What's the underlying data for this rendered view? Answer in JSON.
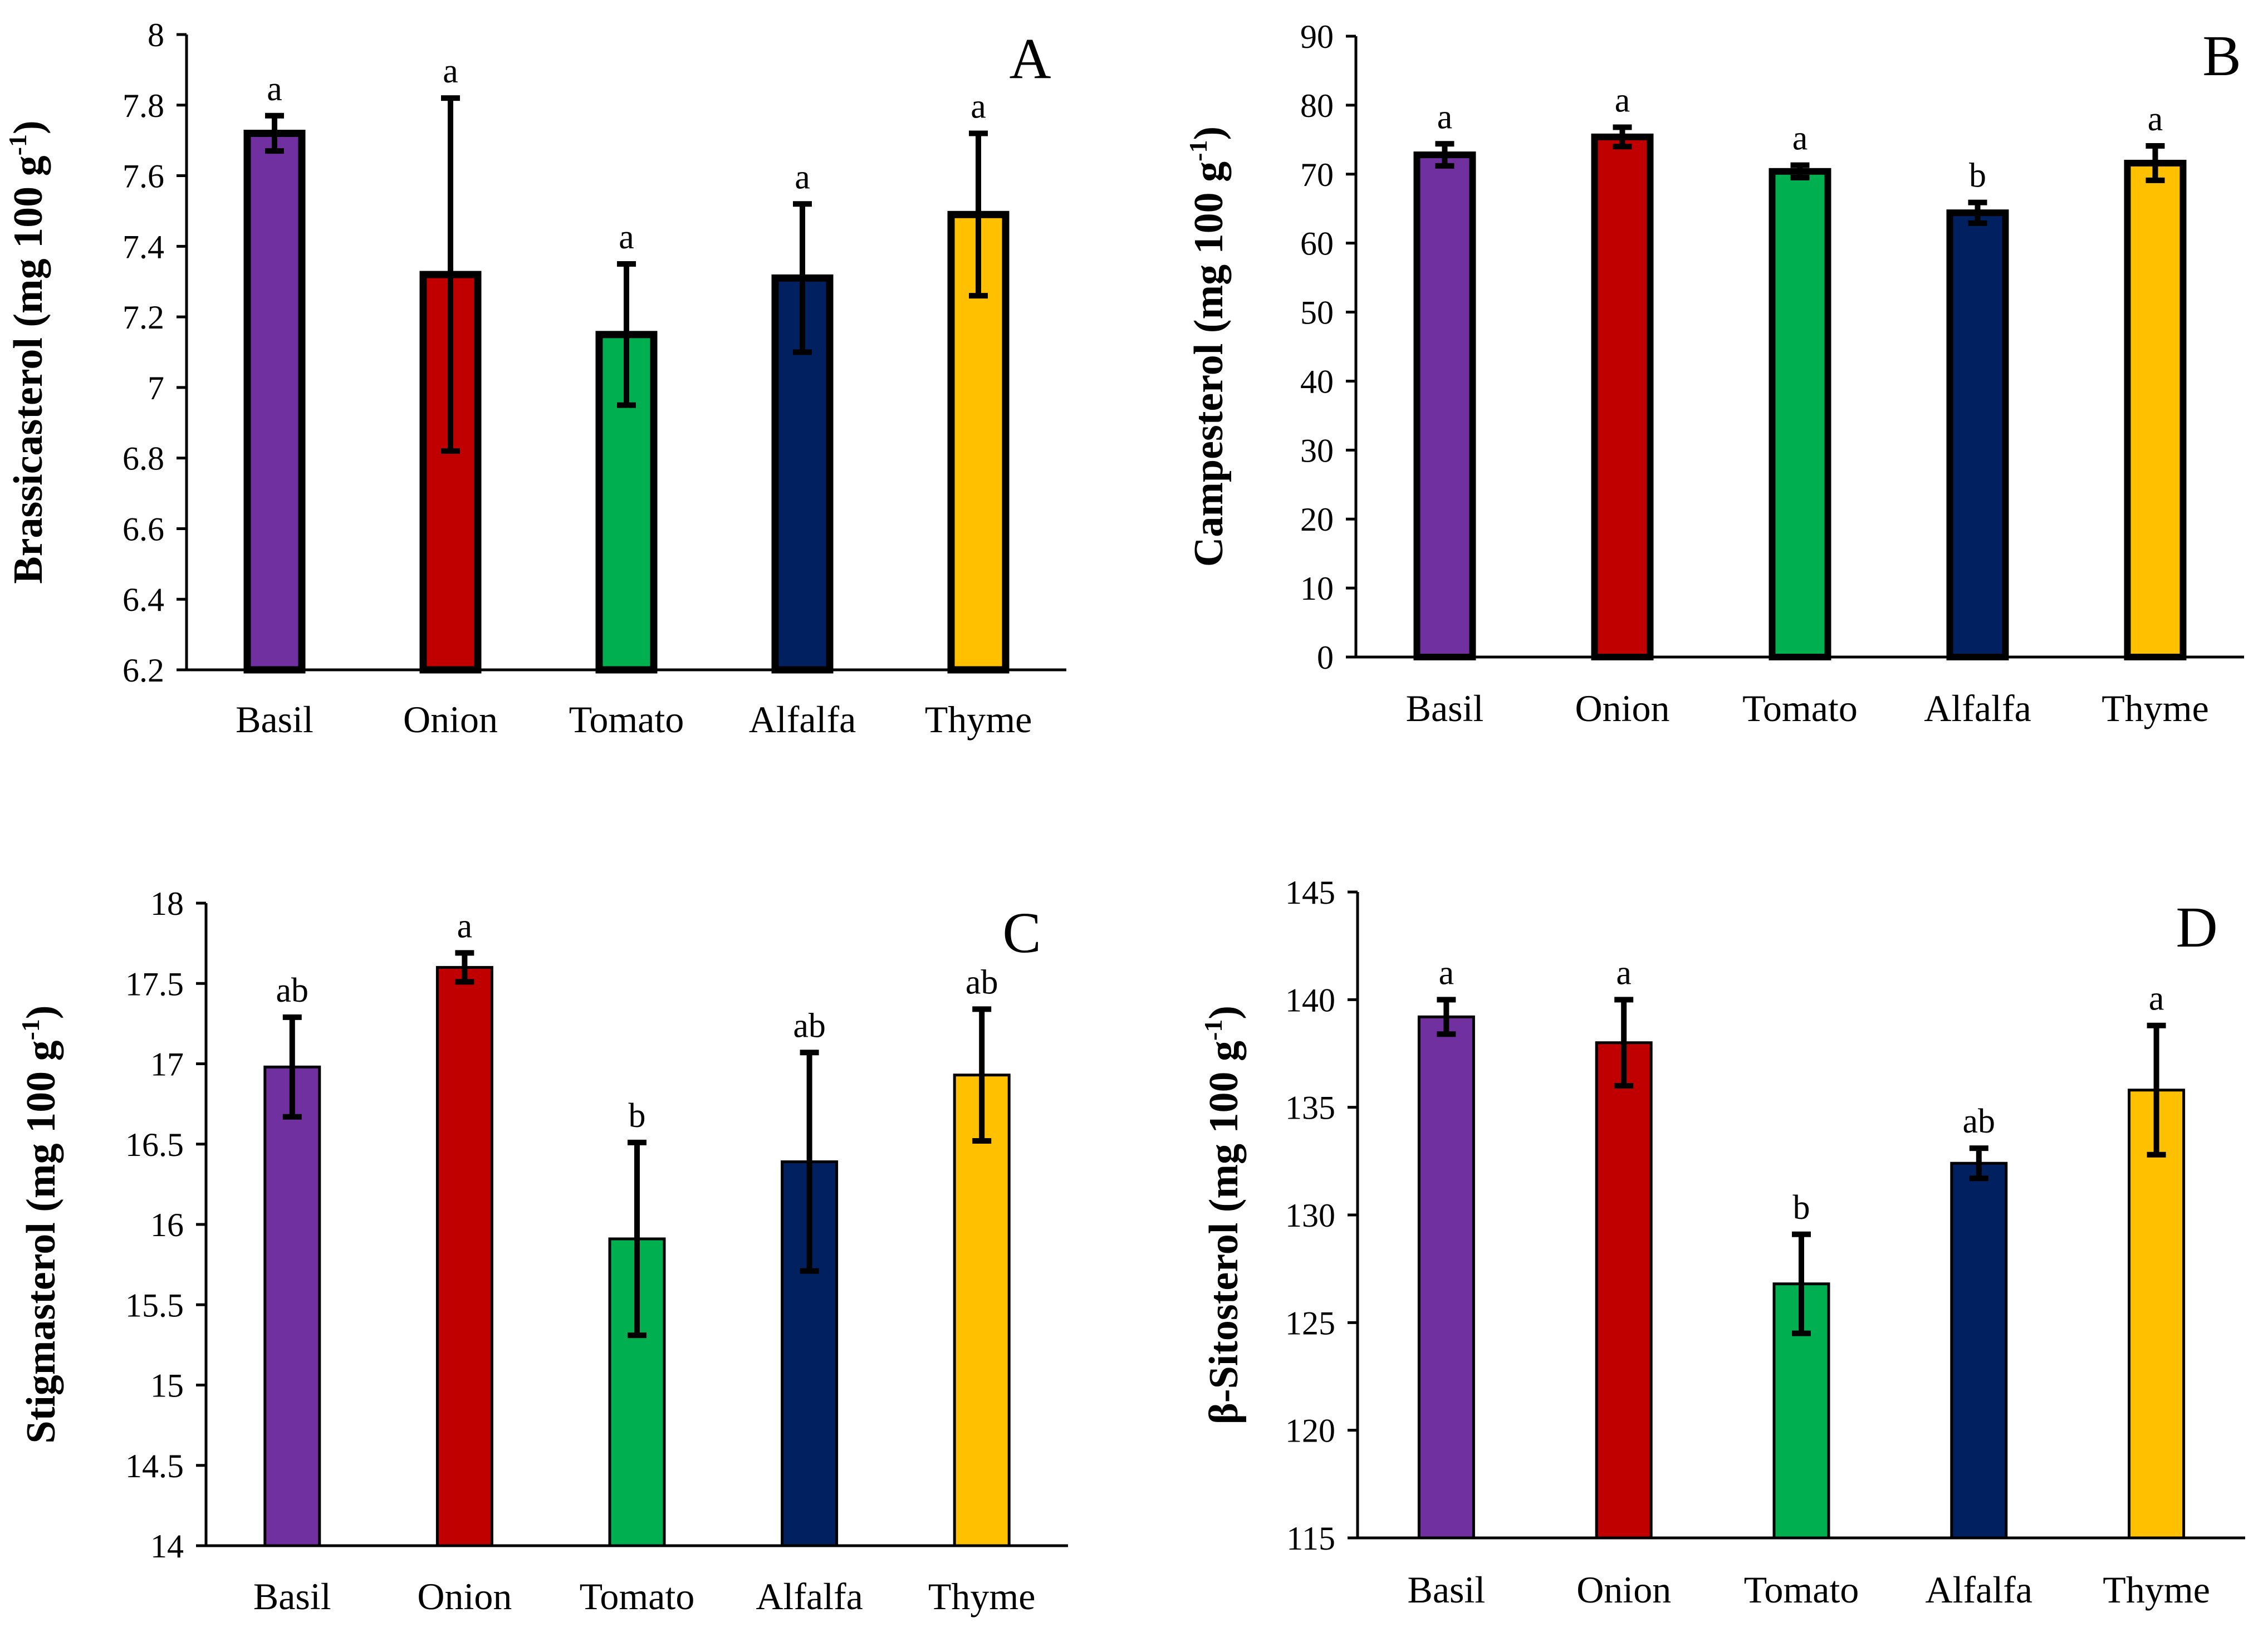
{
  "chart_data": [
    {
      "type": "bar",
      "panel_label": "A",
      "ylabel": "Brassicasterol (mg 100 g-1)",
      "ylabel_parts": [
        "Brassicasterol (mg 100 g",
        "-1",
        ")"
      ],
      "categories": [
        "Basil",
        "Onion",
        "Tomato",
        "Alfalfa",
        "Thyme"
      ],
      "values": [
        7.72,
        7.32,
        7.15,
        7.31,
        7.49
      ],
      "errors": [
        0.05,
        0.5,
        0.2,
        0.21,
        0.23
      ],
      "significance": [
        "a",
        "a",
        "a",
        "a",
        "a"
      ],
      "colors": [
        "#7030A0",
        "#C00000",
        "#00B050",
        "#002060",
        "#FFC000"
      ],
      "ylim": [
        6.2,
        8
      ],
      "yticks": [
        "6.2",
        "6.4",
        "6.6",
        "6.8",
        "7",
        "7.2",
        "7.4",
        "7.6",
        "7.8",
        "8"
      ],
      "grid": false
    },
    {
      "type": "bar",
      "panel_label": "B",
      "ylabel": "Campesterol (mg 100 g-1)",
      "ylabel_parts": [
        "Campesterol (mg 100 g",
        "-1",
        ")"
      ],
      "categories": [
        "Basil",
        "Onion",
        "Tomato",
        "Alfalfa",
        "Thyme"
      ],
      "values": [
        72.8,
        75.4,
        70.4,
        64.4,
        71.6
      ],
      "errors": [
        1.6,
        1.4,
        0.9,
        1.5,
        2.5
      ],
      "significance": [
        "a",
        "a",
        "a",
        "b",
        "a"
      ],
      "colors": [
        "#7030A0",
        "#C00000",
        "#00B050",
        "#002060",
        "#FFC000"
      ],
      "ylim": [
        0,
        90
      ],
      "yticks": [
        "0",
        "10",
        "20",
        "30",
        "40",
        "50",
        "60",
        "70",
        "80",
        "90"
      ],
      "grid": false
    },
    {
      "type": "bar",
      "panel_label": "C",
      "ylabel": "Stigmasterol (mg 100 g-1)",
      "ylabel_parts": [
        "Stigmasterol (mg 100 g",
        "-1",
        ")"
      ],
      "categories": [
        "Basil",
        "Onion",
        "Tomato",
        "Alfalfa",
        "Thyme"
      ],
      "values": [
        16.98,
        17.6,
        15.91,
        16.39,
        16.93
      ],
      "errors": [
        0.31,
        0.09,
        0.6,
        0.68,
        0.41
      ],
      "significance": [
        "ab",
        "a",
        "b",
        "ab",
        "ab"
      ],
      "colors": [
        "#7030A0",
        "#C00000",
        "#00B050",
        "#002060",
        "#FFC000"
      ],
      "ylim": [
        14,
        18
      ],
      "yticks": [
        "14",
        "14.5",
        "15",
        "15.5",
        "16",
        "16.5",
        "17",
        "17.5",
        "18"
      ],
      "grid": false
    },
    {
      "type": "bar",
      "panel_label": "D",
      "ylabel": "β-Sitosterol (mg 100 g-1)",
      "ylabel_parts": [
        "β-Sitosterol (mg 100 g",
        "-1",
        ")"
      ],
      "categories": [
        "Basil",
        "Onion",
        "Tomato",
        "Alfalfa",
        "Thyme"
      ],
      "values": [
        139.2,
        138.0,
        126.8,
        132.4,
        135.8
      ],
      "errors": [
        0.8,
        2.0,
        2.3,
        0.7,
        3.0
      ],
      "significance": [
        "a",
        "a",
        "b",
        "ab",
        "a"
      ],
      "colors": [
        "#7030A0",
        "#C00000",
        "#00B050",
        "#002060",
        "#FFC000"
      ],
      "ylim": [
        115,
        145
      ],
      "yticks": [
        "115",
        "120",
        "125",
        "130",
        "135",
        "140",
        "145"
      ],
      "grid": false
    }
  ]
}
